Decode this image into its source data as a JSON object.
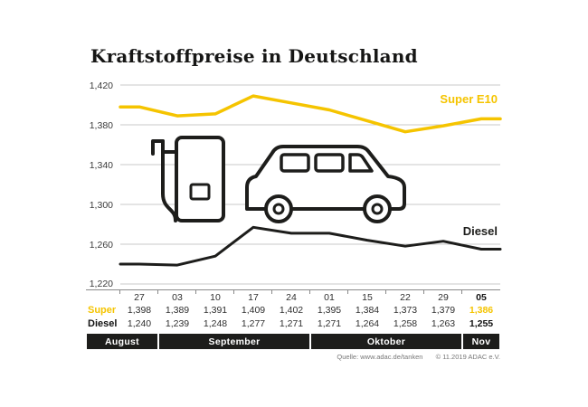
{
  "title": "Kraftstoffpreise in Deutschland",
  "chart_data": {
    "type": "line",
    "x_labels": [
      "27",
      "03",
      "10",
      "17",
      "24",
      "01",
      "15",
      "22",
      "29",
      "05"
    ],
    "months": [
      {
        "label": "August",
        "span": 1
      },
      {
        "label": "September",
        "span": 4
      },
      {
        "label": "Oktober",
        "span": 4
      },
      {
        "label": "Nov",
        "span": 1
      }
    ],
    "series": [
      {
        "name": "Super E10",
        "color": "#F5C400",
        "values": [
          1.398,
          1.389,
          1.391,
          1.409,
          1.402,
          1.395,
          1.384,
          1.373,
          1.379,
          1.386
        ]
      },
      {
        "name": "Diesel",
        "color": "#1D1D1B",
        "values": [
          1.24,
          1.239,
          1.248,
          1.277,
          1.271,
          1.271,
          1.264,
          1.258,
          1.263,
          1.255
        ]
      }
    ],
    "ylim": [
      1.22,
      1.42
    ],
    "yticks": [
      "1,420",
      "1,380",
      "1,340",
      "1,300",
      "1,260",
      "1,220"
    ],
    "grid": true,
    "legend_position": "inline-right"
  },
  "table": {
    "super_label": "Super",
    "diesel_label": "Diesel",
    "super_values": [
      "1,398",
      "1,389",
      "1,391",
      "1,409",
      "1,402",
      "1,395",
      "1,384",
      "1,373",
      "1,379",
      "1,386"
    ],
    "diesel_values": [
      "1,240",
      "1,239",
      "1,248",
      "1,277",
      "1,271",
      "1,271",
      "1,264",
      "1,258",
      "1,263",
      "1,255"
    ]
  },
  "source": {
    "left": "Quelle: www.adac.de/tanken",
    "right": "© 11.2019 ADAC e.V."
  },
  "colors": {
    "accent_yellow": "#F5C400",
    "line_black": "#1D1D1B",
    "grid": "#c9c9c9"
  }
}
